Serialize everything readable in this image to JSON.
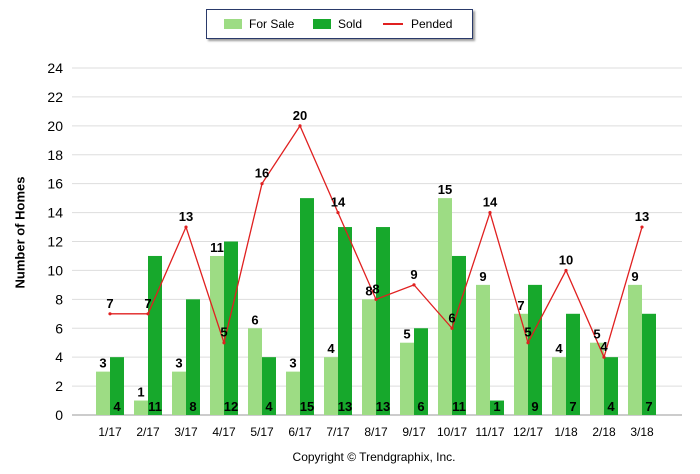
{
  "chart_data": {
    "type": "bar",
    "categories": [
      "1/17",
      "2/17",
      "3/17",
      "4/17",
      "5/17",
      "6/17",
      "7/17",
      "8/17",
      "9/17",
      "10/17",
      "11/17",
      "12/17",
      "1/18",
      "2/18",
      "3/18"
    ],
    "series": [
      {
        "name": "For Sale",
        "kind": "bar",
        "color": "#9ddc84",
        "values": [
          3,
          1,
          3,
          11,
          6,
          3,
          4,
          8,
          5,
          15,
          9,
          7,
          4,
          5,
          9
        ]
      },
      {
        "name": "Sold",
        "kind": "bar",
        "color": "#17a82c",
        "values": [
          4,
          11,
          8,
          12,
          4,
          15,
          13,
          13,
          6,
          11,
          1,
          9,
          7,
          4,
          7
        ]
      },
      {
        "name": "Pended",
        "kind": "line",
        "color": "#e02020",
        "values": [
          7,
          7,
          13,
          5,
          16,
          20,
          14,
          8,
          9,
          6,
          14,
          5,
          10,
          4,
          13
        ]
      }
    ],
    "ylabel": "Number of Homes",
    "ylim": [
      0,
      24
    ],
    "yticks": [
      0,
      2,
      4,
      6,
      8,
      10,
      12,
      14,
      16,
      18,
      20,
      22,
      24
    ],
    "legend_position": "top-center",
    "grid": true
  },
  "footer": {
    "copyright": "Copyright © Trendgraphix, Inc."
  }
}
